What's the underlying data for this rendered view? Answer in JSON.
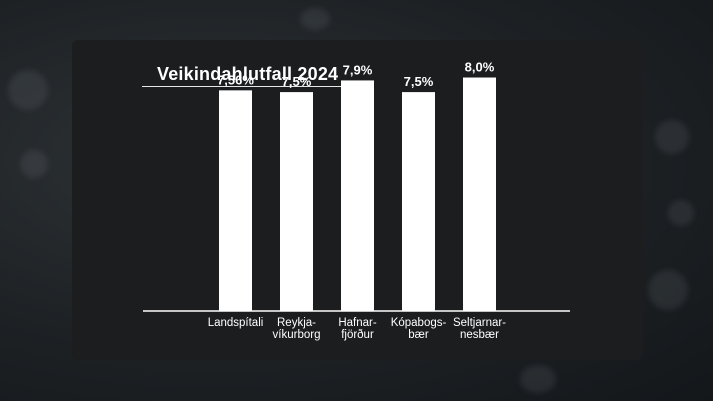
{
  "chart_data": {
    "type": "bar",
    "title": "Veikindahlutfall 2024",
    "xlabel": "",
    "ylabel": "",
    "categories": [
      [
        "Landspítali"
      ],
      [
        "Reykja-",
        "víkurborg"
      ],
      [
        "Hafnar-",
        "fjörður"
      ],
      [
        "Kópabogs-",
        "bær"
      ],
      [
        "Seltjarnar-",
        "nesbær"
      ]
    ],
    "values": [
      7.56,
      7.5,
      7.9,
      7.5,
      8.0
    ],
    "value_labels": [
      "7,56%",
      "7,5%",
      "7,9%",
      "7,5%",
      "8,0%"
    ],
    "ylim": [
      0,
      8.6
    ],
    "grid": false,
    "colors": {
      "bar": "#ffffff",
      "panel": "#1b1d1f",
      "text": "#ffffff"
    }
  }
}
